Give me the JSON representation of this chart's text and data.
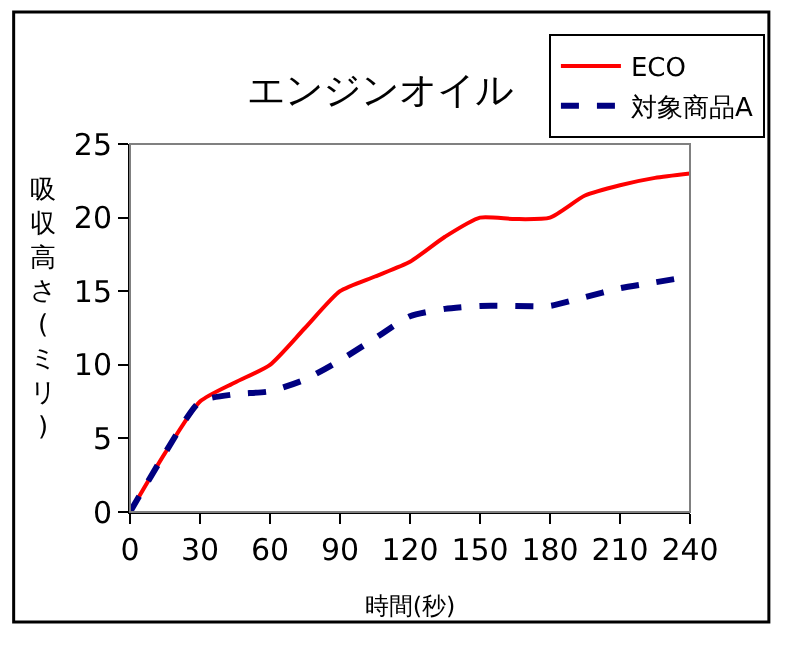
{
  "chart_data": {
    "type": "line",
    "title": "エンジンオイル",
    "xlabel": "時間(秒)",
    "ylabel": "吸収高さ(ミリ)",
    "x": [
      0,
      15,
      30,
      45,
      60,
      75,
      90,
      105,
      120,
      135,
      150,
      165,
      180,
      195,
      210,
      225,
      240
    ],
    "series": [
      {
        "name": "ECO",
        "color": "#ff0000",
        "line_style": "solid",
        "values": [
          0,
          4,
          7.5,
          8.8,
          10,
          12.5,
          15,
          16,
          17,
          18.7,
          20,
          19.9,
          20,
          21.5,
          22.2,
          22.7,
          23
        ]
      },
      {
        "name": "対象商品A",
        "color": "#000080",
        "line_style": "dashed",
        "values": [
          0,
          4,
          7.5,
          8,
          8.2,
          9,
          10.3,
          11.8,
          13.3,
          13.8,
          14,
          14,
          14,
          14.6,
          15.2,
          15.6,
          16
        ]
      }
    ],
    "xlim": [
      0,
      240
    ],
    "xticks": [
      0,
      30,
      60,
      90,
      120,
      150,
      180,
      210,
      240
    ],
    "ylim": [
      0,
      25
    ],
    "yticks": [
      0,
      5,
      10,
      15,
      20,
      25
    ],
    "grid": false,
    "legend": "top right",
    "marker": "none"
  }
}
